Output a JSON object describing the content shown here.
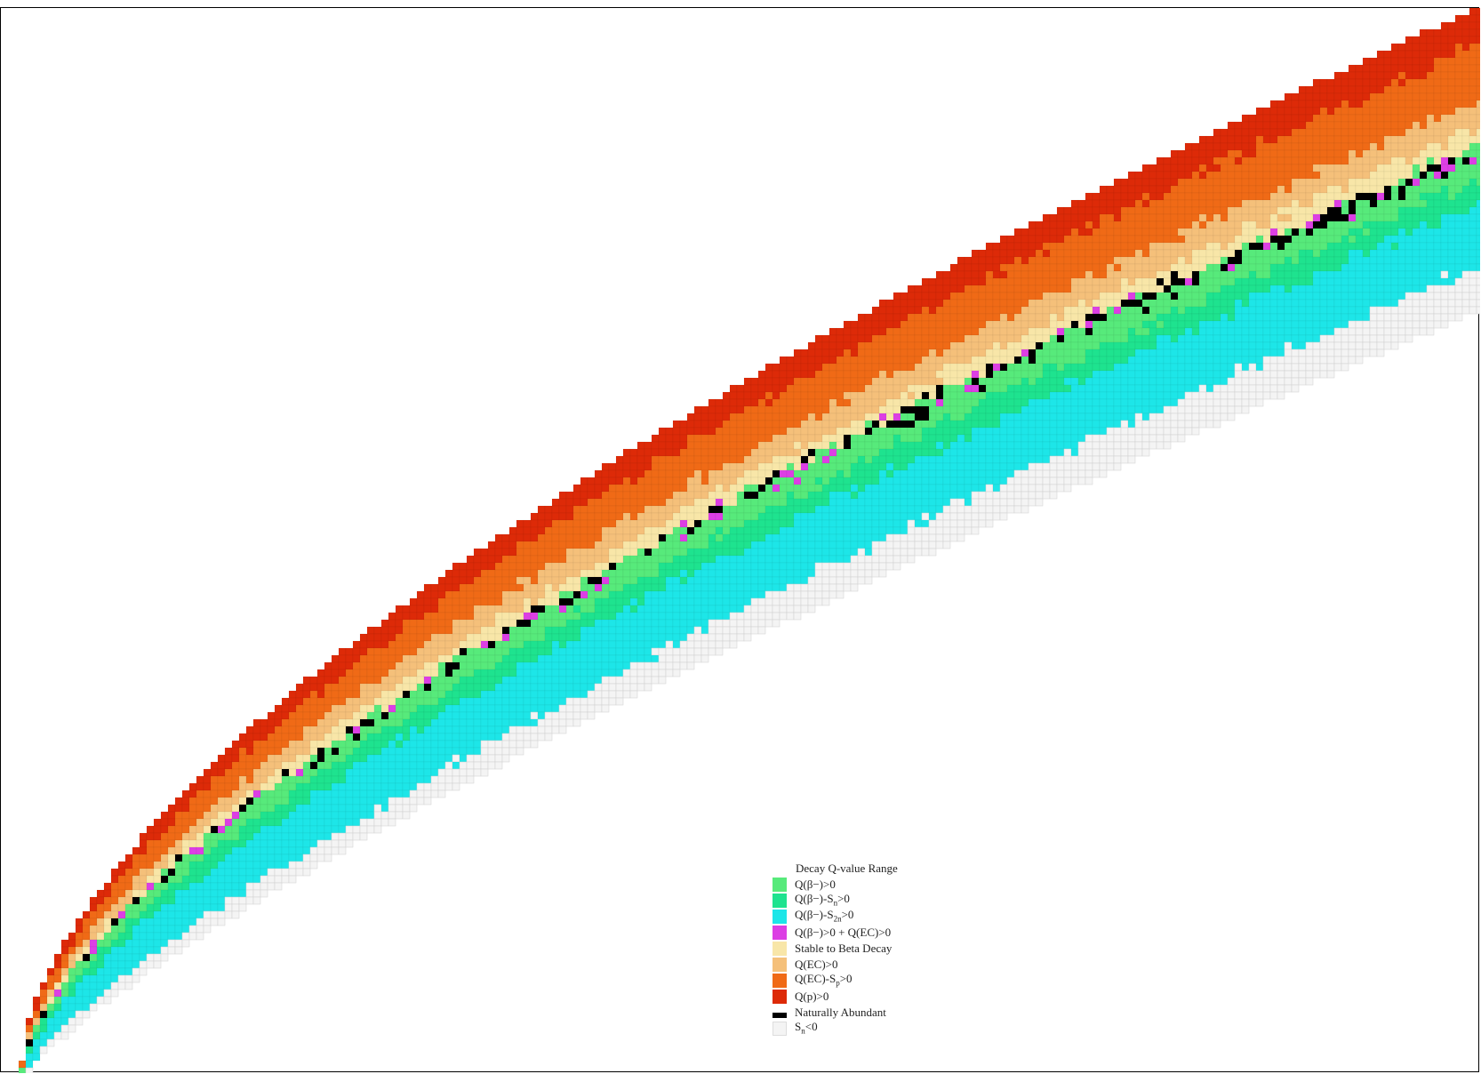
{
  "chart_data": {
    "type": "heatmap",
    "title": "",
    "xlabel": "",
    "ylabel": "",
    "legend_position": "bottom-center",
    "legend": {
      "title": "Decay Q-value Range",
      "entries": [
        {
          "key": "qbm",
          "label": "Q(β−)>0",
          "color": "#57ea7b"
        },
        {
          "key": "qbm_sn",
          "label": "Q(β−)-S",
          "sub": "n",
          "suffix": ">0",
          "color": "#1ee38f"
        },
        {
          "key": "qbm_s2n",
          "label": "Q(β−)-S",
          "sub": "2n",
          "suffix": ">0",
          "color": "#1de6e8"
        },
        {
          "key": "both",
          "label": "Q(β−)>0 + Q(EC)>0",
          "color": "#dc3fe4"
        },
        {
          "key": "stable",
          "label": "Stable to Beta Decay",
          "color": "#f8e6a8"
        },
        {
          "key": "qec",
          "label": "Q(EC)>0",
          "color": "#f5c07a"
        },
        {
          "key": "qec_sp",
          "label": "Q(EC)-S",
          "sub": "p",
          "suffix": ">0",
          "color": "#f06a16"
        },
        {
          "key": "qp",
          "label": "Q(p)>0",
          "color": "#dd2a08"
        },
        {
          "key": "natural",
          "label": "Naturally Abundant",
          "color": "#000000"
        },
        {
          "key": "sn_neg",
          "label": "S",
          "sub": "n",
          "suffix": "<0",
          "color": "#f4f4f4"
        }
      ]
    },
    "regions_description_order": [
      "qp",
      "qec_sp",
      "qec",
      "stable",
      "natural",
      "qbm",
      "qbm_sn",
      "qbm_s2n",
      "sn_neg"
    ]
  }
}
